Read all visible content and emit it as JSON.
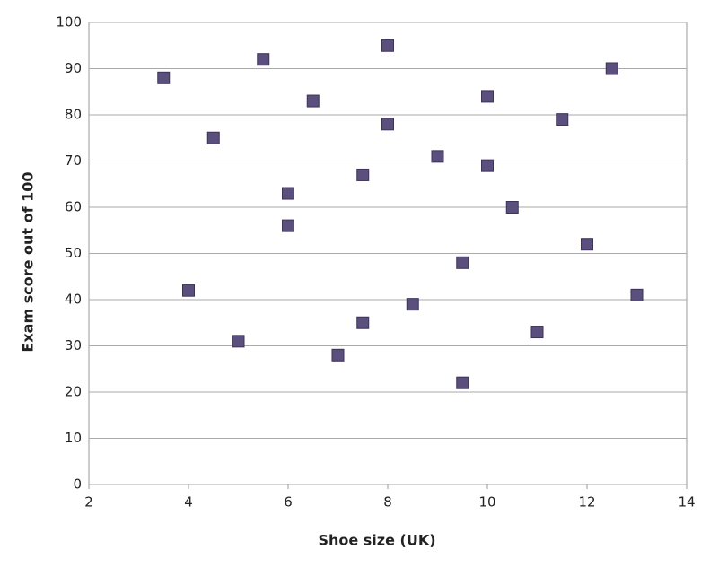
{
  "chart_data": {
    "type": "scatter",
    "x_label": "Shoe size (UK)",
    "y_label": "Exam score out of 100",
    "series": [
      {
        "color": "#5b4f7e",
        "x": [
          3.5,
          4,
          4.5,
          5,
          5.5,
          6,
          6,
          6.5,
          7,
          7.5,
          7.5,
          8,
          8,
          8.5,
          9,
          9.5,
          9.5,
          10,
          10,
          10.5,
          11,
          11.5,
          12,
          12.5,
          13
        ],
        "values": [
          88,
          42,
          75,
          31,
          92,
          63,
          56,
          83,
          28,
          67,
          35,
          95,
          78,
          39,
          71,
          48,
          22,
          84,
          69,
          60,
          33,
          79,
          52,
          90,
          41
        ]
      }
    ],
    "xlim": [
      2,
      14
    ],
    "xticks": [
      2,
      4,
      6,
      8,
      10,
      12,
      14
    ],
    "ylim": [
      0,
      100
    ],
    "yticks": [
      0,
      10,
      20,
      30,
      40,
      50,
      60,
      70,
      80,
      90,
      100
    ],
    "grid": true
  }
}
